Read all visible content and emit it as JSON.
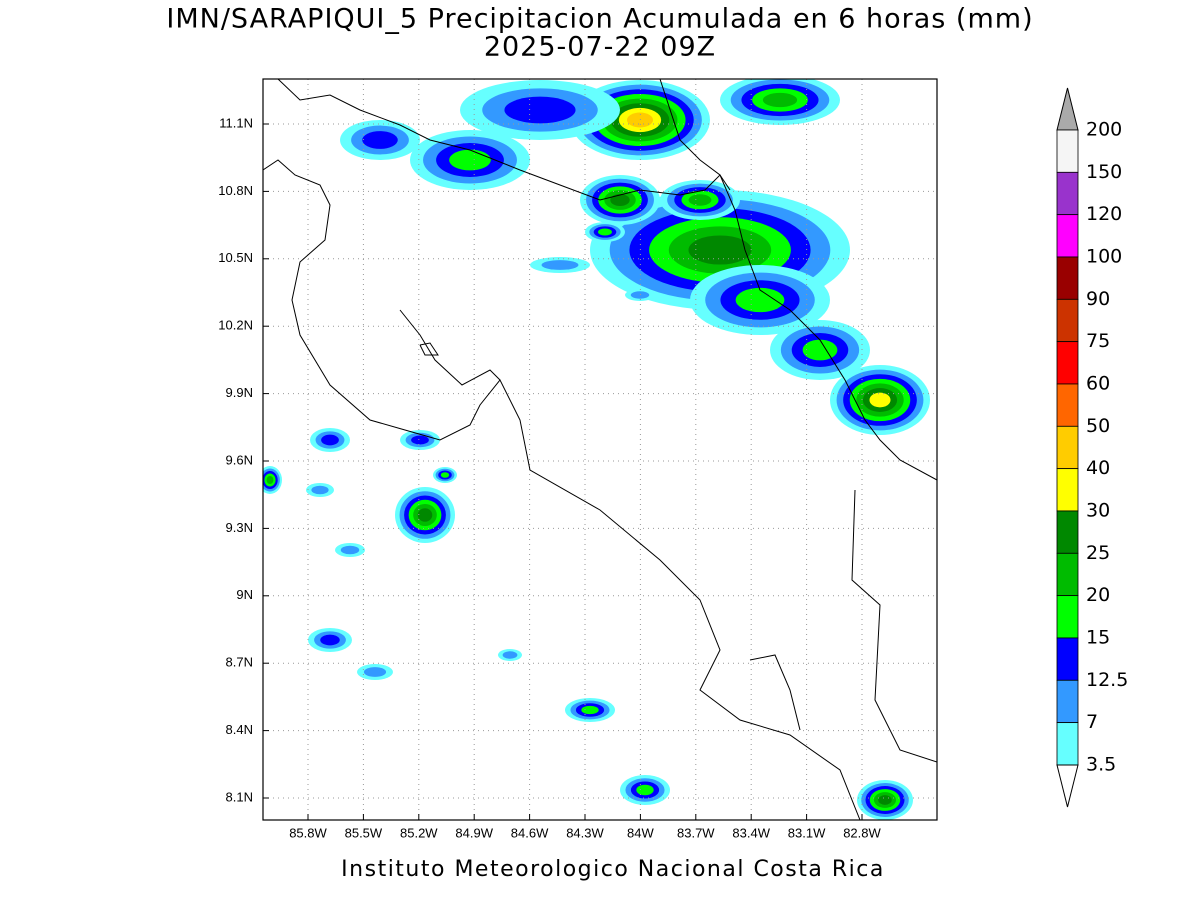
{
  "header": {
    "title": "IMN/SARAPIQUI_5 Precipitacion Acumulada en 6 horas (mm)",
    "subtitle": "2025-07-22 09Z"
  },
  "map": {
    "lat_ticks": [
      "11.1N",
      "10.8N",
      "10.5N",
      "10.2N",
      "9.9N",
      "9.6N",
      "9.3N",
      "9N",
      "8.7N",
      "8.4N",
      "8.1N"
    ],
    "lon_ticks": [
      "85.8W",
      "85.5W",
      "85.2W",
      "84.9W",
      "84.6W",
      "84.3W",
      "84W",
      "83.7W",
      "83.4W",
      "83.1W",
      "82.8W"
    ]
  },
  "colorbar": {
    "labels": [
      "200",
      "150",
      "120",
      "100",
      "90",
      "75",
      "60",
      "50",
      "40",
      "30",
      "25",
      "20",
      "15",
      "12.5",
      "7",
      "3.5"
    ],
    "colors": [
      "#f5f5f5",
      "#9933cc",
      "#ff00ff",
      "#990000",
      "#cc3300",
      "#ff0000",
      "#ff6600",
      "#ffcc00",
      "#ffff00",
      "#008800",
      "#00bb00",
      "#00ff00",
      "#0000ff",
      "#3399ff",
      "#66ffff"
    ],
    "over_color": "#aaaaaa",
    "under_color": "#ffffff"
  },
  "footer": {
    "credit": "Instituto Meteorologico Nacional Costa Rica"
  }
}
